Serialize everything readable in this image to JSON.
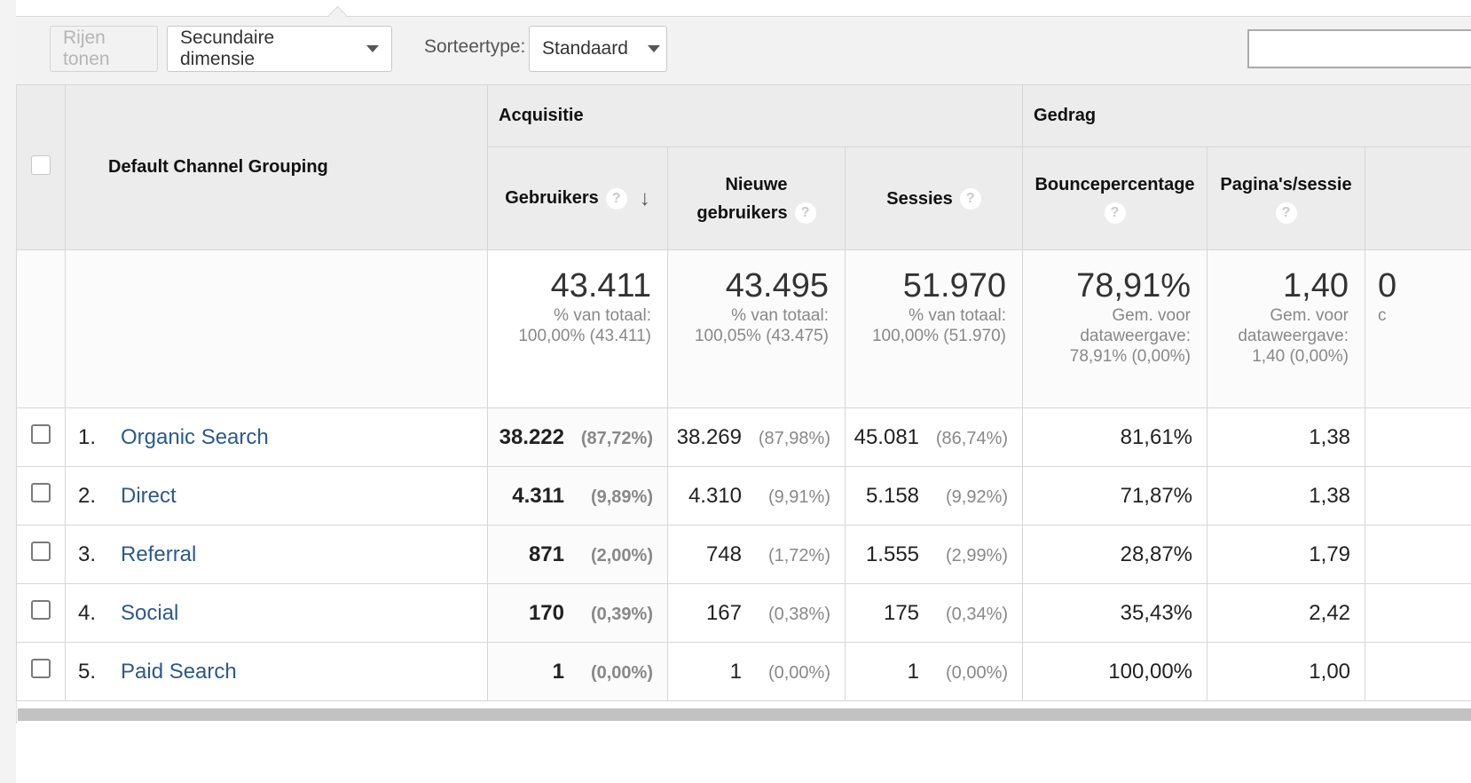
{
  "toolbar": {
    "rows_button": "Rijen tonen",
    "secondary_dimension": "Secundaire dimensie",
    "sort_label": "Sorteertype:",
    "sort_value": "Standaard"
  },
  "table": {
    "dimension_header": "Default Channel Grouping",
    "groups": {
      "acquisition": "Acquisitie",
      "behavior": "Gedrag"
    },
    "columns": {
      "users": "Gebruikers",
      "new_users_1": "Nieuwe",
      "new_users_2": "gebruikers",
      "sessions": "Sessies",
      "bounce": "Bouncepercentage",
      "pages": "Pagina's/sessie"
    },
    "totals": {
      "users": {
        "value": "43.411",
        "line1": "% van totaal:",
        "line2": "100,00% (43.411)"
      },
      "new_users": {
        "value": "43.495",
        "line1": "% van totaal:",
        "line2": "100,05% (43.475)"
      },
      "sessions": {
        "value": "51.970",
        "line1": "% van totaal:",
        "line2": "100,00% (51.970)"
      },
      "bounce": {
        "value": "78,91%",
        "line1": "Gem. voor",
        "line2": "dataweergave:",
        "line3": "78,91% (0,00%)"
      },
      "pages": {
        "value": "1,40",
        "line1": "Gem. voor",
        "line2": "dataweergave:",
        "line3": "1,40 (0,00%)"
      },
      "next_partial": {
        "value": "0",
        "line1": "c"
      }
    },
    "rows": [
      {
        "idx": "1.",
        "name": "Organic Search",
        "users": "38.222",
        "users_pct": "(87,72%)",
        "new_users": "38.269",
        "new_users_pct": "(87,98%)",
        "sessions": "45.081",
        "sessions_pct": "(86,74%)",
        "bounce": "81,61%",
        "pages": "1,38"
      },
      {
        "idx": "2.",
        "name": "Direct",
        "users": "4.311",
        "users_pct": "(9,89%)",
        "new_users": "4.310",
        "new_users_pct": "(9,91%)",
        "sessions": "5.158",
        "sessions_pct": "(9,92%)",
        "bounce": "71,87%",
        "pages": "1,38"
      },
      {
        "idx": "3.",
        "name": "Referral",
        "users": "871",
        "users_pct": "(2,00%)",
        "new_users": "748",
        "new_users_pct": "(1,72%)",
        "sessions": "1.555",
        "sessions_pct": "(2,99%)",
        "bounce": "28,87%",
        "pages": "1,79"
      },
      {
        "idx": "4.",
        "name": "Social",
        "users": "170",
        "users_pct": "(0,39%)",
        "new_users": "167",
        "new_users_pct": "(0,38%)",
        "sessions": "175",
        "sessions_pct": "(0,34%)",
        "bounce": "35,43%",
        "pages": "2,42"
      },
      {
        "idx": "5.",
        "name": "Paid Search",
        "users": "1",
        "users_pct": "(0,00%)",
        "new_users": "1",
        "new_users_pct": "(0,00%)",
        "sessions": "1",
        "sessions_pct": "(0,00%)",
        "bounce": "100,00%",
        "pages": "1,00"
      }
    ]
  }
}
